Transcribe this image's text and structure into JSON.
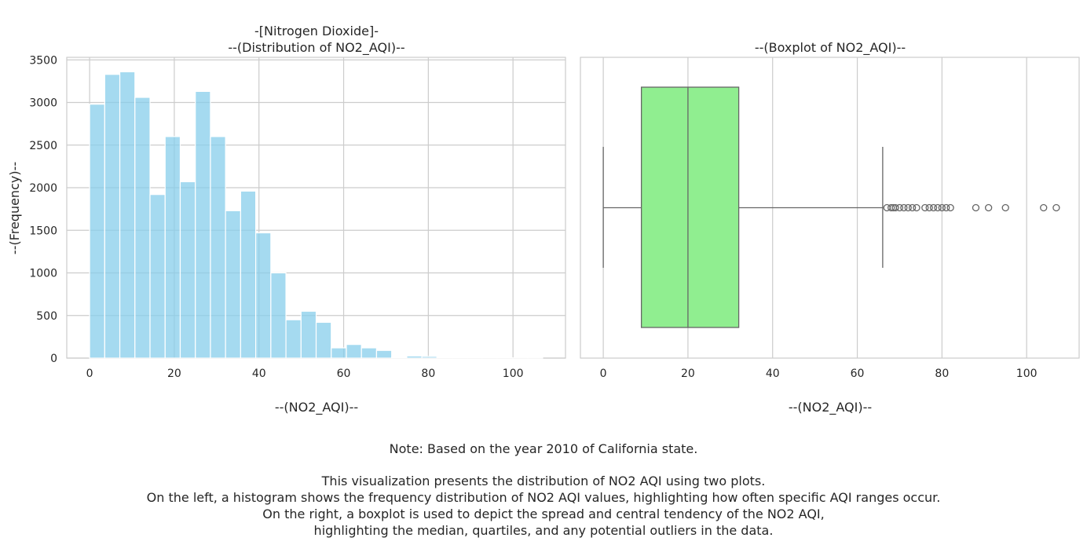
{
  "chart_data": [
    {
      "type": "bar",
      "title": "-[Nitrogen Dioxide]-",
      "subtitle": "--(Distribution of NO2_AQI)--",
      "xlabel": "--(NO2_AQI)--",
      "ylabel": "--(Frequency)--",
      "xlim": [
        -5.4,
        112.4
      ],
      "ylim": [
        0,
        3530
      ],
      "xticks": [
        0,
        20,
        40,
        60,
        80,
        100
      ],
      "yticks": [
        0,
        500,
        1000,
        1500,
        2000,
        2500,
        3000,
        3500
      ],
      "bin_width": 3.567,
      "bin_start": 0,
      "values": [
        2980,
        3330,
        3360,
        3060,
        1920,
        2600,
        2070,
        3130,
        2600,
        1730,
        1960,
        1470,
        1000,
        450,
        550,
        420,
        120,
        160,
        120,
        90,
        10,
        25,
        20,
        8,
        8,
        6,
        5,
        4,
        3,
        3
      ],
      "color": "#87ceeb",
      "grid": true
    },
    {
      "type": "box",
      "title": "--(Boxplot of NO2_AQI)--",
      "xlabel": "--(NO2_AQI)--",
      "xlim": [
        -5.4,
        112.4
      ],
      "xticks": [
        0,
        20,
        40,
        60,
        80,
        100
      ],
      "whisker_low": 0,
      "q1": 9,
      "median": 20,
      "q3": 32,
      "whisker_high": 66,
      "outliers": [
        67,
        68,
        68.5,
        69,
        70,
        71,
        72,
        73,
        74,
        76,
        77,
        78,
        79,
        80,
        81,
        82,
        88,
        91,
        95,
        104,
        107
      ],
      "color": "#90ee90",
      "grid": true
    }
  ],
  "note": {
    "line1": "Note: Based on the year 2010 of California state.",
    "line2": "This visualization presents the distribution of NO2 AQI using two plots.",
    "line3": "On the left, a histogram shows the frequency distribution of NO2 AQI values, highlighting how often specific AQI ranges occur.",
    "line4": "On the right, a boxplot is used to depict the spread and central tendency of the NO2 AQI,",
    "line5": "highlighting the median, quartiles, and any potential outliers in the data."
  }
}
